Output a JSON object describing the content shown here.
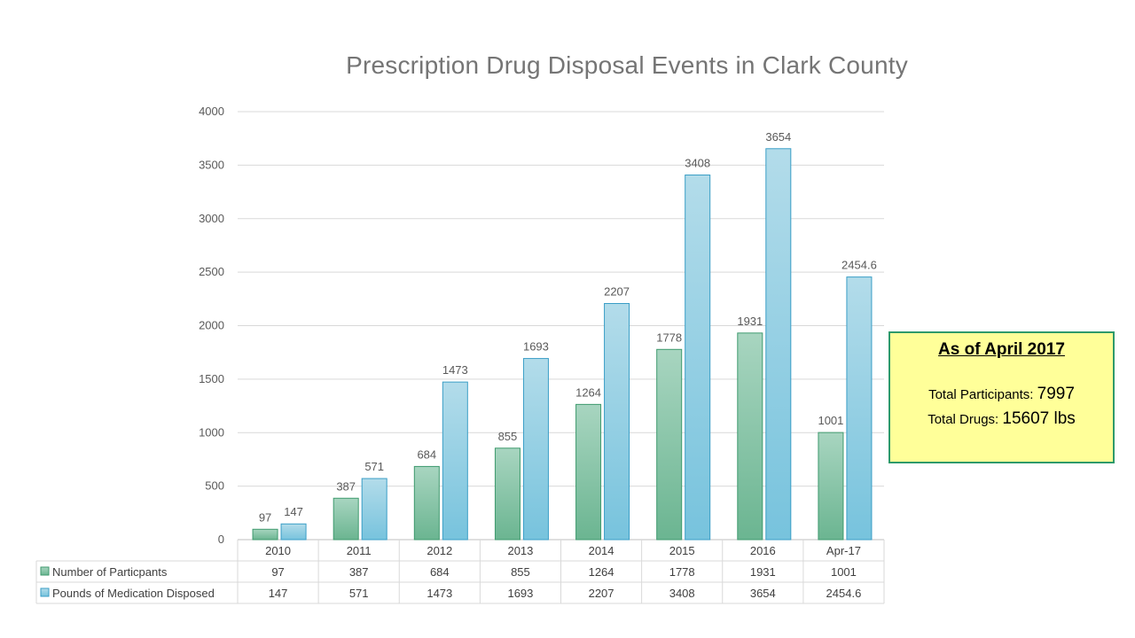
{
  "chart_data": {
    "type": "bar",
    "title": "Prescription Drug Disposal Events in Clark County",
    "categories": [
      "2010",
      "2011",
      "2012",
      "2013",
      "2014",
      "2015",
      "2016",
      "Apr-17"
    ],
    "series": [
      {
        "name": "Number of Particpants",
        "values": [
          97,
          387,
          684,
          855,
          1264,
          1778,
          1931,
          1001
        ],
        "labels": [
          "97",
          "387",
          "684",
          "855",
          "1264",
          "1778",
          "1931",
          "1001"
        ],
        "color_top": "#a8d5c0",
        "color_bottom": "#6bb591",
        "stroke": "#3f9a6e"
      },
      {
        "name": "Pounds of Medication Disposed",
        "values": [
          147,
          571,
          1473,
          1693,
          2207,
          3408,
          3654,
          2454.6
        ],
        "labels": [
          "147",
          "571",
          "1473",
          "1693",
          "2207",
          "3408",
          "3654",
          "2454.6"
        ],
        "color_top": "#b3dcea",
        "color_bottom": "#77c3dd",
        "stroke": "#3a9ec6"
      }
    ],
    "ylim": [
      0,
      4000
    ],
    "yticks": [
      0,
      500,
      1000,
      1500,
      2000,
      2500,
      3000,
      3500,
      4000
    ],
    "xlabel": "",
    "ylabel": "",
    "grid": true,
    "legend": "data-table"
  },
  "info_box": {
    "heading": "As of April 2017",
    "participants_label": "Total Participants: ",
    "participants_value": "7997",
    "drugs_label": "Total Drugs: ",
    "drugs_value": "15607 lbs",
    "background": "#ffff99",
    "border": "#2e9a6a"
  }
}
